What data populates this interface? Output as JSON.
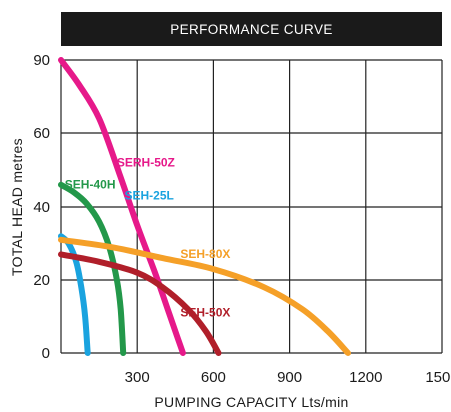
{
  "chart_data": {
    "type": "line",
    "title": "PERFORMANCE CURVE",
    "xlabel": "PUMPING CAPACITY Lts/min",
    "ylabel": "TOTAL HEAD metres",
    "xlim": [
      0,
      1500
    ],
    "ylim": [
      0,
      90
    ],
    "x_ticks": [
      300,
      600,
      900,
      1200,
      1500
    ],
    "y_ticks": [
      0,
      20,
      40,
      60,
      90
    ],
    "grid": true,
    "legend": "inline labels",
    "series": [
      {
        "name": "SEH-25L",
        "color": "#1aa3df",
        "points": [
          [
            0,
            32
          ],
          [
            30,
            30
          ],
          [
            60,
            25
          ],
          [
            80,
            18
          ],
          [
            95,
            10
          ],
          [
            105,
            0
          ]
        ]
      },
      {
        "name": "SEH-40H",
        "color": "#23984a",
        "points": [
          [
            0,
            46
          ],
          [
            50,
            44
          ],
          [
            100,
            41
          ],
          [
            150,
            36
          ],
          [
            190,
            29
          ],
          [
            220,
            20
          ],
          [
            235,
            12
          ],
          [
            245,
            0
          ]
        ]
      },
      {
        "name": "SERH-50Z",
        "color": "#e6198a",
        "points": [
          [
            0,
            90
          ],
          [
            70,
            80
          ],
          [
            150,
            66
          ],
          [
            230,
            49
          ],
          [
            300,
            35
          ],
          [
            370,
            22
          ],
          [
            420,
            12
          ],
          [
            460,
            4
          ],
          [
            480,
            0
          ]
        ]
      },
      {
        "name": "SEH-80X",
        "color": "#f5a028",
        "points": [
          [
            0,
            31
          ],
          [
            200,
            29
          ],
          [
            400,
            26
          ],
          [
            600,
            23
          ],
          [
            800,
            18
          ],
          [
            950,
            12
          ],
          [
            1050,
            6
          ],
          [
            1130,
            0
          ]
        ]
      },
      {
        "name": "SEH-50X",
        "color": "#b01f2a",
        "points": [
          [
            0,
            27
          ],
          [
            150,
            25
          ],
          [
            300,
            22
          ],
          [
            400,
            18
          ],
          [
            500,
            12
          ],
          [
            570,
            6
          ],
          [
            620,
            0
          ]
        ]
      }
    ],
    "series_labels": [
      {
        "name": "SERH-50Z",
        "color": "#e6198a",
        "x": 220,
        "y": 51
      },
      {
        "name": "SEH-40H",
        "color": "#23984a",
        "x": 15,
        "y": 45
      },
      {
        "name": "SEH-25L",
        "color": "#1aa3df",
        "x": 250,
        "y": 42
      },
      {
        "name": "SEH-80X",
        "color": "#f5a028",
        "x": 470,
        "y": 26
      },
      {
        "name": "SEH-50X",
        "color": "#b01f2a",
        "x": 470,
        "y": 10
      }
    ]
  }
}
